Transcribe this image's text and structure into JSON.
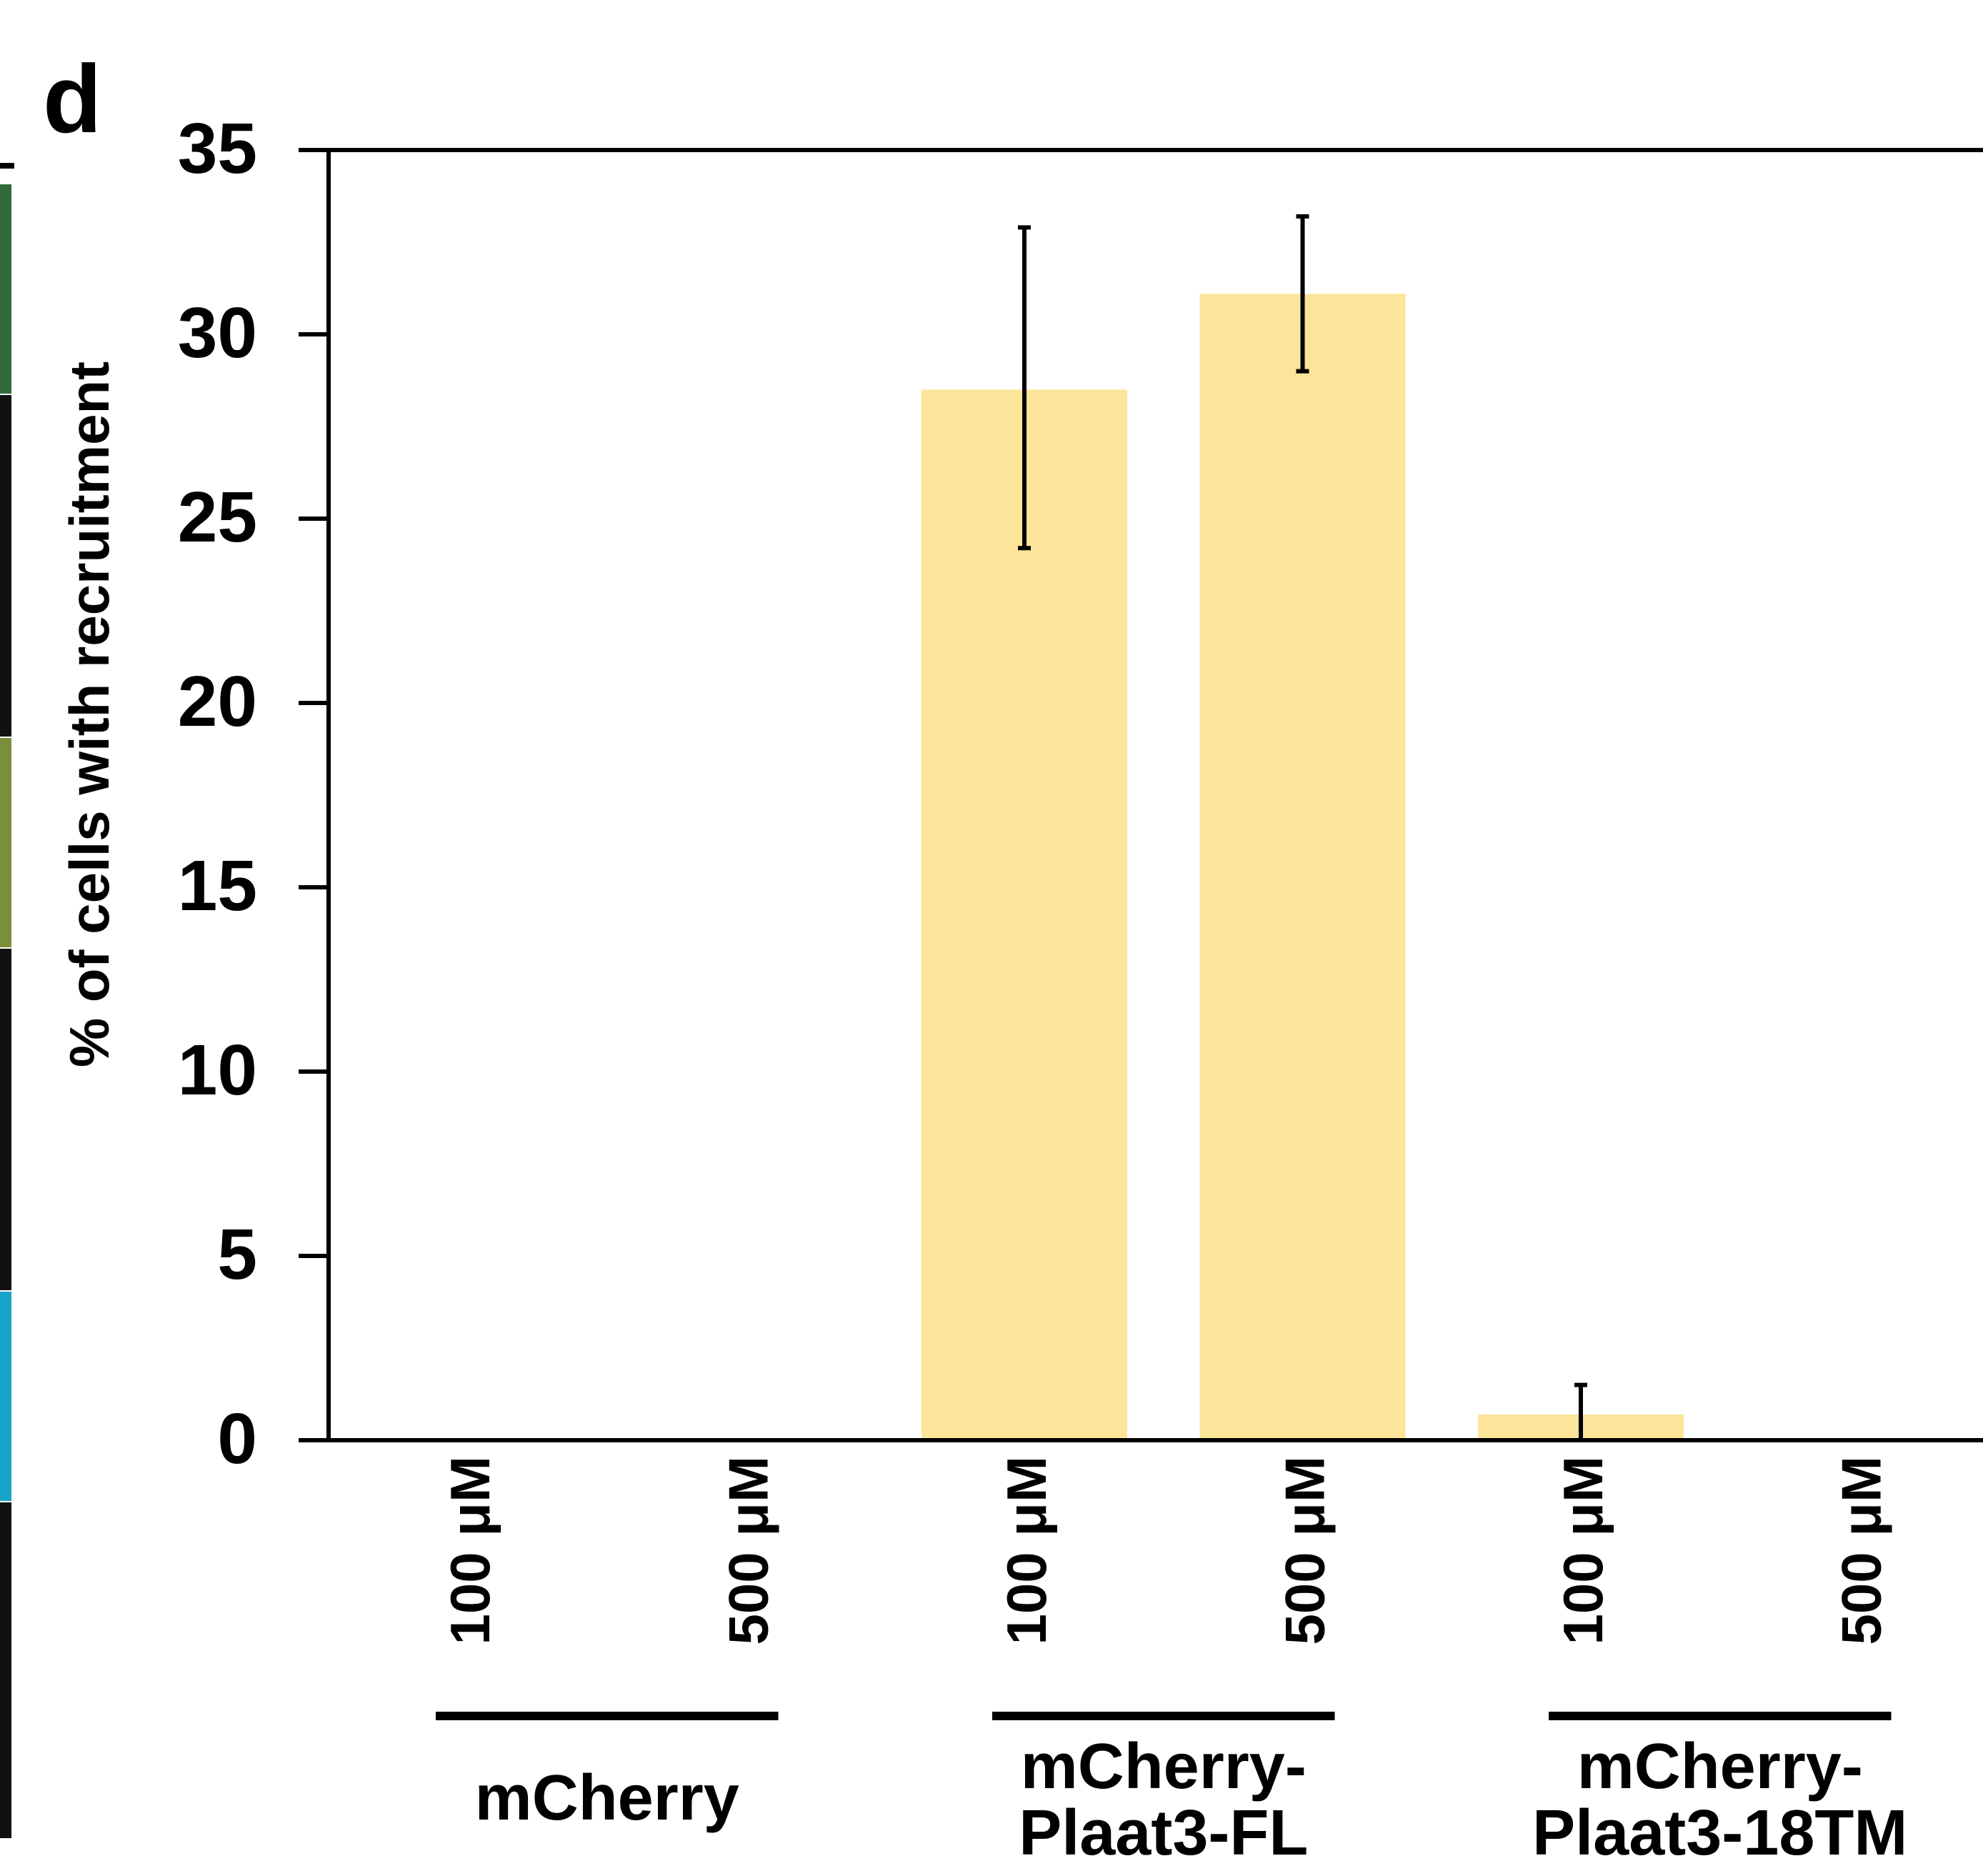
{
  "panel_label": "d",
  "colors": {
    "bar_fill": "#FCE49A",
    "axis": "#000000",
    "strip_colors": [
      "#2f6b3a",
      "#111111",
      "#7a8f3a",
      "#111111",
      "#1aa3c9",
      "#111111"
    ]
  },
  "chart_data": {
    "type": "bar",
    "title": "",
    "xlabel": "",
    "ylabel": "% of cells with recruitment",
    "ylim": [
      0,
      35
    ],
    "yticks": [
      0,
      5,
      10,
      15,
      20,
      25,
      30,
      35
    ],
    "categories": [
      "100 μM",
      "500 μM",
      "100 μM",
      "500 μM",
      "100 μM",
      "500 μM"
    ],
    "values": [
      0,
      0,
      28.5,
      31.1,
      0.7,
      0
    ],
    "error_low": [
      0,
      0,
      24.2,
      29.0,
      0.0,
      0
    ],
    "error_high": [
      0,
      0,
      32.9,
      33.2,
      1.5,
      0
    ],
    "groups": [
      {
        "label_lines": [
          "mCherry"
        ],
        "members": [
          0,
          1
        ]
      },
      {
        "label_lines": [
          "mCherry-",
          "Plaat3-FL"
        ],
        "members": [
          2,
          3
        ]
      },
      {
        "label_lines": [
          "mCherry-",
          "Plaat3-18TM"
        ],
        "members": [
          4,
          5
        ]
      }
    ],
    "grid": false,
    "legend": "none"
  }
}
